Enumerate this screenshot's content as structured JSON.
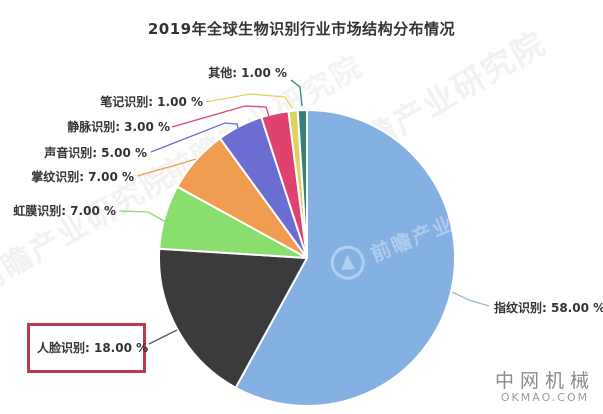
{
  "title": "2019年全球生物识别行业市场结构分布情况",
  "chart_data": {
    "type": "pie",
    "title": "2019年全球生物识别行业市场结构分布情况",
    "unit": "%",
    "start_angle_deg": 0,
    "direction": "clockwise",
    "legend": "none",
    "background": "#ffffff",
    "highlight_box_color": "#bd3a4c",
    "slices": [
      {
        "name": "其他",
        "value": 1.0,
        "text": "其他: 1.00 %",
        "color": "#37807a",
        "highlighted": false
      },
      {
        "name": "笔记识别",
        "value": 1.0,
        "text": "笔记识别: 1.00 %",
        "color": "#ddd45e",
        "highlighted": false
      },
      {
        "name": "静脉识别",
        "value": 3.0,
        "text": "静脉识别: 3.00 %",
        "color": "#e04270",
        "highlighted": false
      },
      {
        "name": "声音识别",
        "value": 5.0,
        "text": "声音识别: 5.00 %",
        "color": "#6a6ed2",
        "highlighted": false
      },
      {
        "name": "掌纹识别",
        "value": 7.0,
        "text": "掌纹识别: 7.00 %",
        "color": "#f09d52",
        "highlighted": false
      },
      {
        "name": "虹膜识别",
        "value": 7.0,
        "text": "虹膜识别: 7.00 %",
        "color": "#8ade6e",
        "highlighted": false
      },
      {
        "name": "人脸识别",
        "value": 18.0,
        "text": "人脸识别: 18.00 %",
        "color": "#3b3b3d",
        "highlighted": true
      },
      {
        "name": "指纹识别",
        "value": 58.0,
        "text": "指纹识别: 58.00 %",
        "color": "#85b0e2",
        "highlighted": false
      }
    ]
  },
  "watermarks": {
    "logo_text": "前瞻产业研究院",
    "brand_name": "中网机械",
    "brand_site": "OKMAO.COM"
  }
}
